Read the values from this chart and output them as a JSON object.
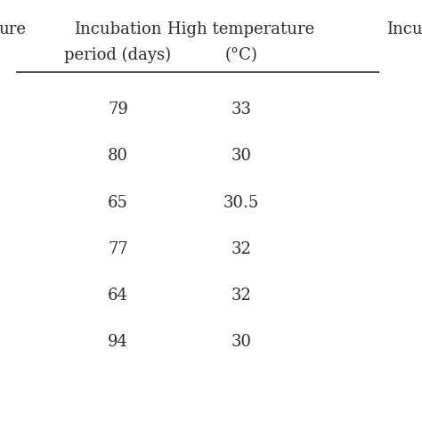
{
  "col1_header_line1": "ure",
  "col2_header_line1": "Incubation",
  "col2_header_line2": "period (days)",
  "col3_header_line1": "High temperature",
  "col3_header_line2": "(°C)",
  "col4_header_line1": "Incu",
  "rows": [
    [
      "79",
      "33"
    ],
    [
      "80",
      "30"
    ],
    [
      "65",
      "30.5"
    ],
    [
      "77",
      "32"
    ],
    [
      "64",
      "32"
    ],
    [
      "94",
      "30"
    ]
  ],
  "background_color": "#ffffff",
  "text_color": "#2b2b2b",
  "header_line_color": "#2b2b2b",
  "font_size": 13,
  "header_font_size": 13
}
